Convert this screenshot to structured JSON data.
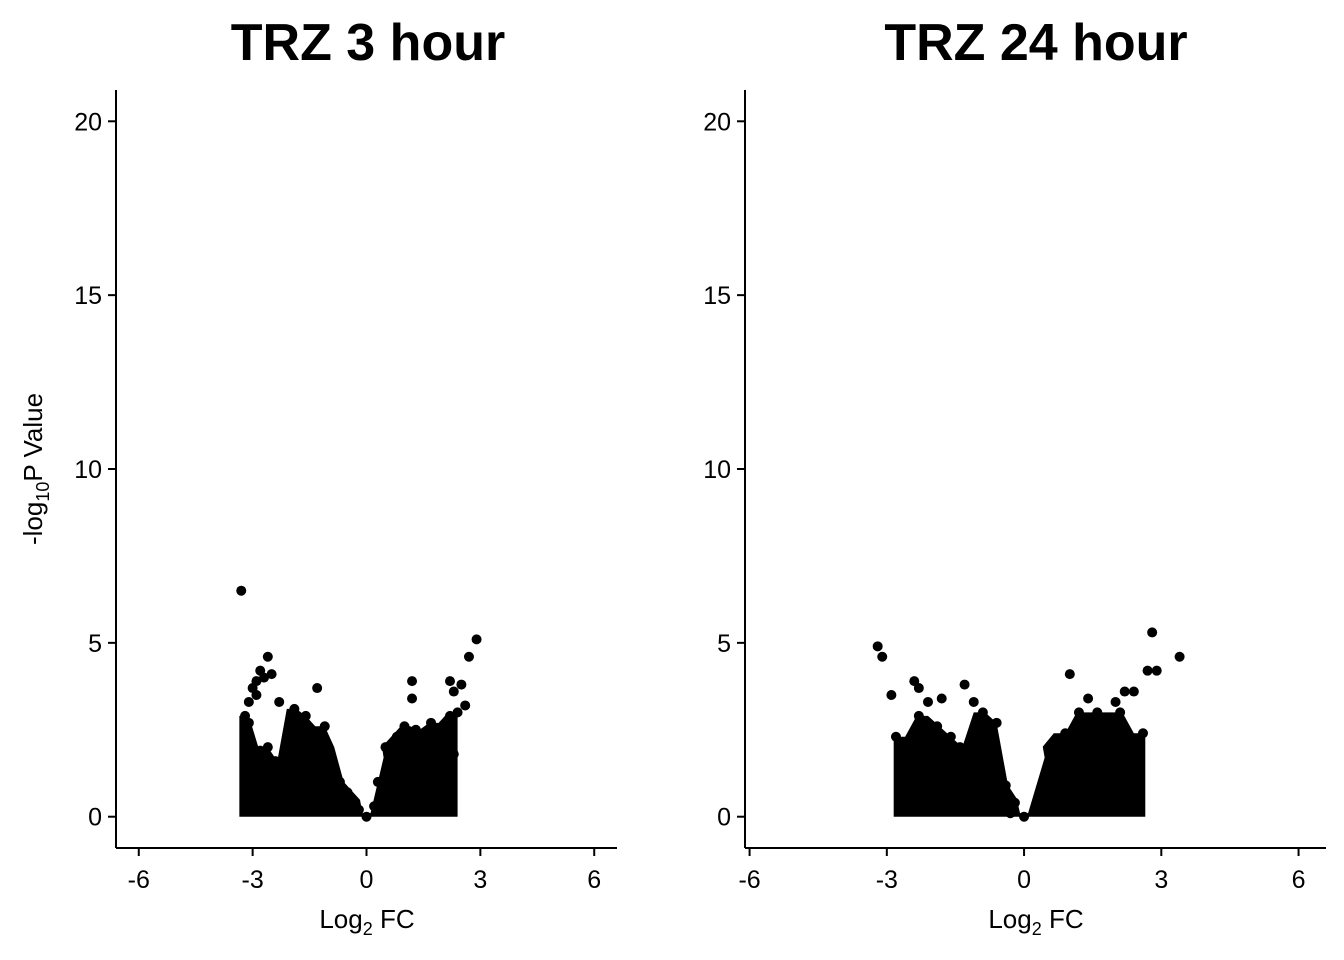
{
  "chart_data": [
    {
      "type": "scatter",
      "title": "TRZ 3 hour",
      "xlabel": {
        "main": "Log",
        "sub": "2",
        "rest": " FC"
      },
      "ylabel": {
        "main": "-log",
        "sub": "10",
        "rest": "P Value"
      },
      "xlim": [
        -6.6,
        6.6
      ],
      "ylim": [
        -0.9,
        20.9
      ],
      "xticks": [
        -6,
        -3,
        0,
        3,
        6
      ],
      "xtick_labels": [
        "-6",
        "-3",
        "0",
        "3",
        "6"
      ],
      "yticks": [
        0,
        5,
        10,
        15,
        20
      ],
      "ytick_labels": [
        "0",
        "5",
        "10",
        "15",
        "20"
      ],
      "point_color": "#000000",
      "points": [
        [
          -3.3,
          6.5
        ],
        [
          -2.6,
          4.6
        ],
        [
          -2.8,
          4.2
        ],
        [
          -2.7,
          4.0
        ],
        [
          -2.5,
          4.1
        ],
        [
          -2.9,
          3.9
        ],
        [
          -3.1,
          3.3
        ],
        [
          -3.0,
          3.7
        ],
        [
          -2.9,
          3.5
        ],
        [
          -3.2,
          2.9
        ],
        [
          -3.1,
          2.7
        ],
        [
          -2.8,
          1.9
        ],
        [
          -2.6,
          2.0
        ],
        [
          -2.3,
          3.3
        ],
        [
          -1.9,
          3.1
        ],
        [
          -1.6,
          2.9
        ],
        [
          -1.3,
          3.7
        ],
        [
          -1.1,
          2.6
        ],
        [
          -2.0,
          2.4
        ],
        [
          -1.8,
          2.2
        ],
        [
          -2.4,
          1.6
        ],
        [
          -1.5,
          1.8
        ],
        [
          -1.2,
          1.6
        ],
        [
          -1.0,
          2.0
        ],
        [
          -2.2,
          1.2
        ],
        [
          -1.7,
          0.9
        ],
        [
          -1.4,
          1.2
        ],
        [
          -0.9,
          1.4
        ],
        [
          -0.7,
          1.0
        ],
        [
          -0.5,
          0.7
        ],
        [
          -0.3,
          0.4
        ],
        [
          -0.2,
          0.2
        ],
        [
          -1.9,
          0.7
        ],
        [
          -1.1,
          0.5
        ],
        [
          -0.6,
          0.3
        ],
        [
          0.0,
          0.0
        ],
        [
          0.2,
          0.3
        ],
        [
          0.3,
          1.0
        ],
        [
          0.5,
          2.0
        ],
        [
          0.6,
          1.4
        ],
        [
          0.8,
          2.3
        ],
        [
          0.9,
          1.7
        ],
        [
          1.0,
          2.6
        ],
        [
          1.1,
          2.2
        ],
        [
          1.2,
          3.9
        ],
        [
          1.2,
          3.4
        ],
        [
          1.3,
          2.5
        ],
        [
          1.4,
          1.8
        ],
        [
          1.5,
          2.4
        ],
        [
          1.6,
          1.3
        ],
        [
          1.7,
          2.7
        ],
        [
          1.8,
          1.1
        ],
        [
          1.9,
          2.1
        ],
        [
          2.0,
          0.9
        ],
        [
          2.1,
          2.5
        ],
        [
          2.2,
          3.9
        ],
        [
          2.3,
          3.6
        ],
        [
          2.4,
          3.0
        ],
        [
          2.5,
          3.8
        ],
        [
          2.6,
          3.2
        ],
        [
          2.7,
          4.6
        ],
        [
          2.9,
          5.1
        ],
        [
          1.5,
          0.6
        ],
        [
          0.9,
          0.5
        ],
        [
          0.5,
          0.3
        ],
        [
          2.3,
          1.8
        ],
        [
          2.2,
          2.9
        ],
        [
          0.7,
          0.8
        ]
      ]
    },
    {
      "type": "scatter",
      "title": "TRZ 24 hour",
      "xlabel": {
        "main": "Log",
        "sub": "2",
        "rest": " FC"
      },
      "ylabel": {
        "main": "",
        "sub": "",
        "rest": ""
      },
      "xlim": [
        -6.1,
        6.6
      ],
      "ylim": [
        -0.9,
        20.9
      ],
      "xticks": [
        -6,
        -3,
        0,
        3,
        6
      ],
      "xtick_labels": [
        "-6",
        "-3",
        "0",
        "3",
        "6"
      ],
      "yticks": [
        0,
        5,
        10,
        15,
        20
      ],
      "ytick_labels": [
        "0",
        "5",
        "10",
        "15",
        "20"
      ],
      "point_color": "#000000",
      "points": [
        [
          -3.2,
          4.9
        ],
        [
          -3.1,
          4.6
        ],
        [
          -2.4,
          3.9
        ],
        [
          -2.3,
          3.7
        ],
        [
          -2.9,
          3.5
        ],
        [
          -2.8,
          2.3
        ],
        [
          -2.1,
          3.3
        ],
        [
          -1.8,
          3.4
        ],
        [
          -1.3,
          3.8
        ],
        [
          -1.1,
          3.3
        ],
        [
          -0.9,
          3.0
        ],
        [
          -0.6,
          2.7
        ],
        [
          -2.3,
          2.9
        ],
        [
          -2.2,
          2.5
        ],
        [
          -2.1,
          2.2
        ],
        [
          -1.9,
          2.6
        ],
        [
          -1.6,
          2.3
        ],
        [
          -1.4,
          2.0
        ],
        [
          -2.2,
          1.8
        ],
        [
          -1.8,
          1.5
        ],
        [
          -1.5,
          1.2
        ],
        [
          -1.2,
          1.6
        ],
        [
          -1.0,
          1.3
        ],
        [
          -0.8,
          1.0
        ],
        [
          -2.1,
          1.1
        ],
        [
          -1.7,
          0.8
        ],
        [
          -1.3,
          0.6
        ],
        [
          -0.9,
          0.5
        ],
        [
          -0.6,
          0.3
        ],
        [
          -0.3,
          0.1
        ],
        [
          -0.4,
          0.9
        ],
        [
          -0.2,
          0.4
        ],
        [
          0.0,
          0.0
        ],
        [
          0.3,
          0.5
        ],
        [
          0.5,
          1.4
        ],
        [
          0.6,
          2.0
        ],
        [
          0.8,
          1.5
        ],
        [
          0.9,
          2.4
        ],
        [
          1.1,
          2.0
        ],
        [
          1.0,
          4.1
        ],
        [
          1.2,
          3.0
        ],
        [
          1.3,
          2.6
        ],
        [
          1.4,
          3.4
        ],
        [
          1.5,
          2.2
        ],
        [
          1.6,
          3.0
        ],
        [
          1.7,
          1.8
        ],
        [
          1.8,
          2.7
        ],
        [
          1.9,
          1.4
        ],
        [
          2.0,
          3.3
        ],
        [
          2.1,
          3.0
        ],
        [
          2.2,
          3.6
        ],
        [
          2.3,
          2.2
        ],
        [
          2.4,
          3.6
        ],
        [
          2.6,
          2.4
        ],
        [
          2.7,
          4.2
        ],
        [
          2.8,
          5.3
        ],
        [
          2.9,
          4.2
        ],
        [
          3.4,
          4.6
        ],
        [
          2.5,
          1.0
        ],
        [
          1.7,
          0.7
        ],
        [
          1.2,
          0.5
        ],
        [
          0.8,
          0.3
        ],
        [
          2.2,
          1.7
        ],
        [
          1.9,
          2.5
        ]
      ]
    }
  ]
}
